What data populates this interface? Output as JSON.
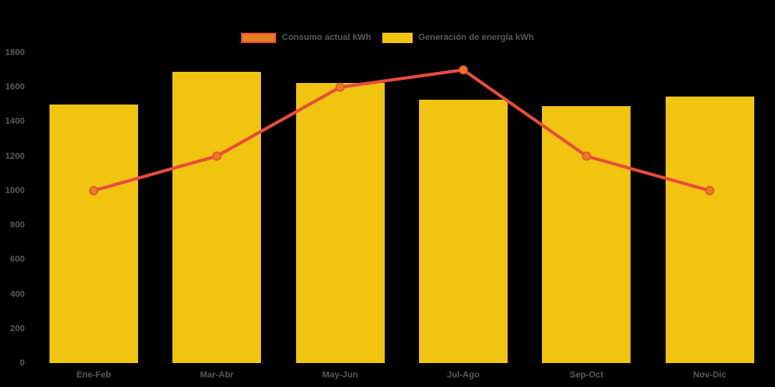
{
  "chart_data": {
    "type": "bar",
    "title": "",
    "categories": [
      "Ene-Feb",
      "Mar-Abr",
      "May-Jun",
      "Jul-Ago",
      "Sep-Oct",
      "Nov-Dic"
    ],
    "series": [
      {
        "name": "Consumo actual kWh",
        "type": "line",
        "color": "#E74C3C",
        "marker_fill": "#E67E22",
        "values": [
          1000,
          1200,
          1600,
          1700,
          1200,
          1000
        ]
      },
      {
        "name": "Generación de energía kWh",
        "type": "bar",
        "color": "#F1C40F",
        "values": [
          1500,
          1690,
          1625,
          1525,
          1490,
          1545
        ]
      }
    ],
    "xlabel": "",
    "ylabel": "",
    "ylim": [
      0,
      1800
    ],
    "yticks": [
      0,
      200,
      400,
      600,
      800,
      1000,
      1200,
      1400,
      1600,
      1800
    ],
    "grid": false,
    "legend_position": "top",
    "background_color": "#000000",
    "axis_text_color": "#595959"
  }
}
